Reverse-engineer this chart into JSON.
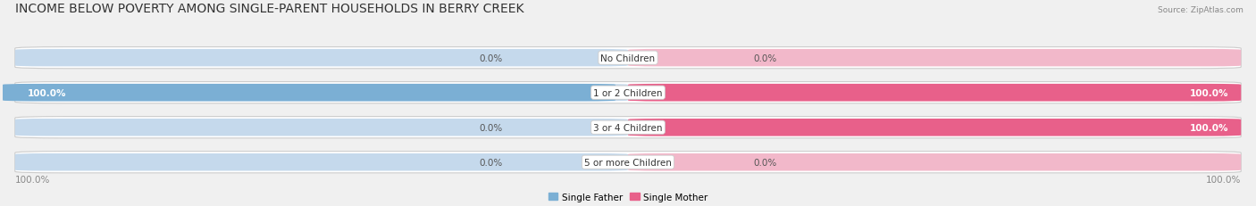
{
  "title": "INCOME BELOW POVERTY AMONG SINGLE-PARENT HOUSEHOLDS IN BERRY CREEK",
  "source": "Source: ZipAtlas.com",
  "categories": [
    "No Children",
    "1 or 2 Children",
    "3 or 4 Children",
    "5 or more Children"
  ],
  "single_father": [
    0.0,
    100.0,
    0.0,
    0.0
  ],
  "single_mother": [
    0.0,
    100.0,
    100.0,
    0.0
  ],
  "father_color": "#7bafd4",
  "mother_color": "#e8608a",
  "father_color_light": "#c5d9ec",
  "mother_color_light": "#f2b8ca",
  "row_bg_color": "#e8e8e8",
  "bg_color": "#f0f0f0",
  "title_fontsize": 10,
  "label_fontsize": 7.5,
  "category_fontsize": 7.5,
  "figsize": [
    14.06,
    2.32
  ],
  "dpi": 100
}
